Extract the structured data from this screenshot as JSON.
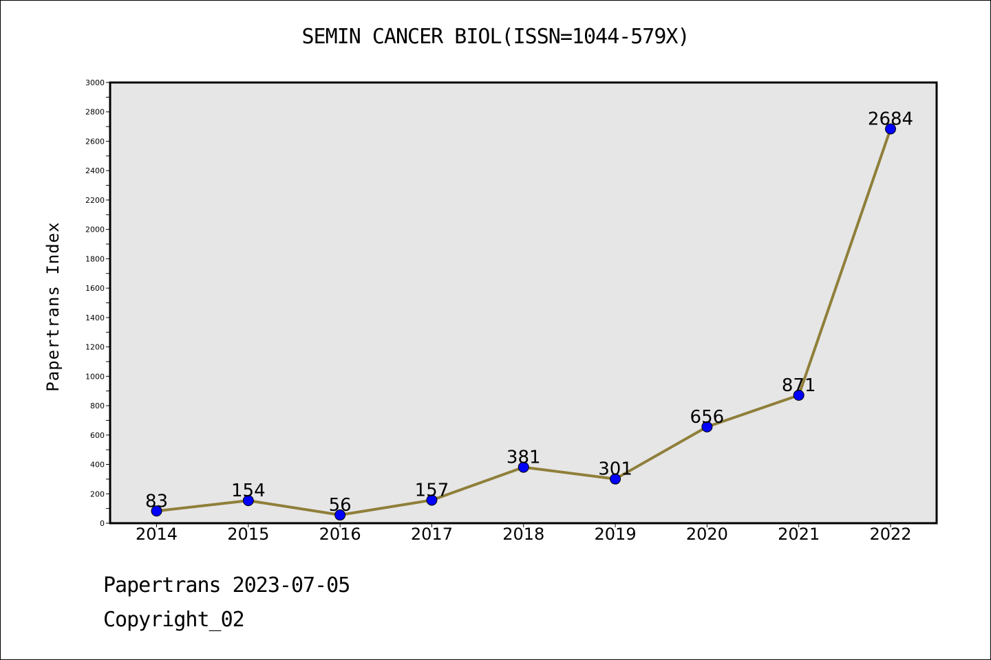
{
  "chart_data": {
    "type": "line",
    "title": "SEMIN CANCER BIOL(ISSN=1044-579X)",
    "xlabel": "",
    "ylabel": "Papertrans Index",
    "categories": [
      "2014",
      "2015",
      "2016",
      "2017",
      "2018",
      "2019",
      "2020",
      "2021",
      "2022"
    ],
    "values": [
      83,
      154,
      56,
      157,
      381,
      301,
      656,
      871,
      2684
    ],
    "data_labels": [
      "83",
      "154",
      "56",
      "157",
      "381",
      "301",
      "656",
      "871",
      "2684"
    ],
    "ylim": [
      0,
      3000
    ],
    "y_ticks": [
      0,
      200,
      400,
      600,
      800,
      1000,
      1200,
      1400,
      1600,
      1800,
      2000,
      2200,
      2400,
      2600,
      2800,
      3000
    ],
    "y_tick_labels": [
      "0",
      "200",
      "400",
      "600",
      "800",
      "1000",
      "1200",
      "1400",
      "1600",
      "1800",
      "2000",
      "2200",
      "2400",
      "2600",
      "2800",
      "3000"
    ],
    "grid": false,
    "legend": "none",
    "colors": {
      "line": "#8f7f3a",
      "marker": "#0000ff",
      "plot_background": "#e6e6e6"
    }
  },
  "footer": {
    "date_line": "Papertrans 2023-07-05",
    "copyright_line": "Copyright_02"
  }
}
